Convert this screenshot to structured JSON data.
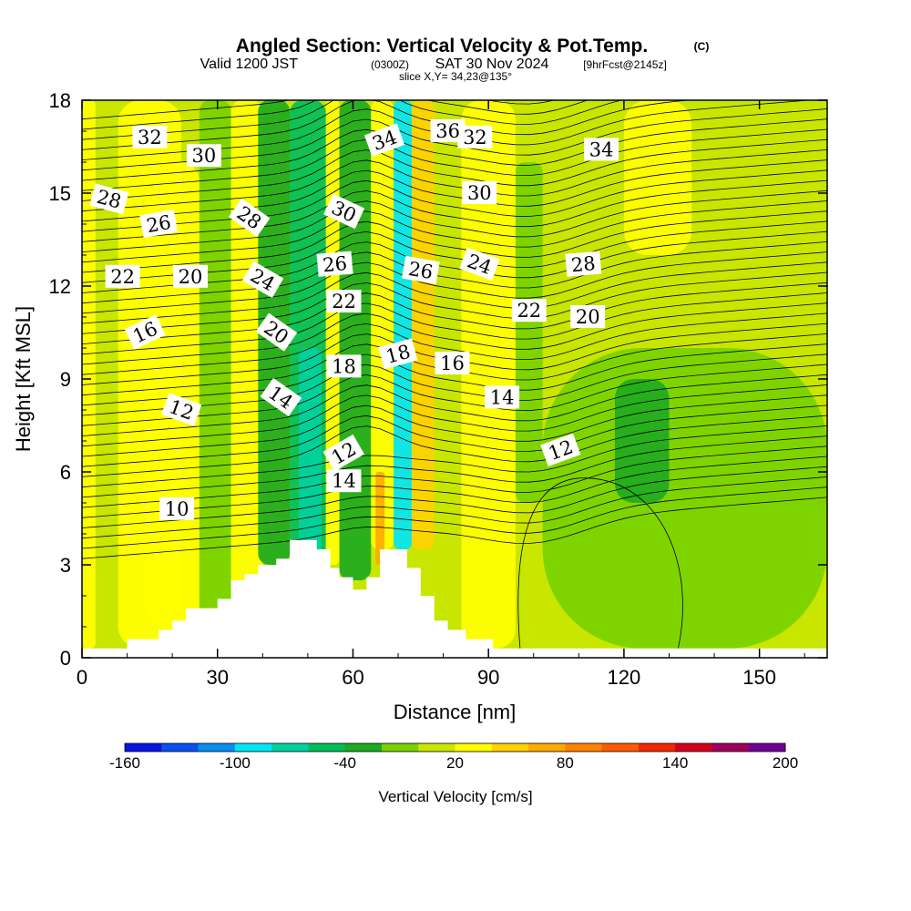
{
  "title": {
    "main": "Angled Section: Vertical Velocity & Pot.Temp.",
    "copyright": "(C)",
    "valid_prefix": "Valid 1200 JST",
    "valid_z": "(0300Z)",
    "valid_date": "SAT 30 Nov 2024",
    "valid_fcst": "[9hrFcst@2145z]",
    "slice": "slice X,Y= 34,23@135°"
  },
  "chart_data": {
    "type": "heatmap",
    "title": "Angled Section: Vertical Velocity & Pot.Temp.",
    "xlabel": "Distance [nm]",
    "ylabel": "Height [Kft MSL]",
    "xlim": [
      0,
      165
    ],
    "ylim": [
      0,
      18
    ],
    "x_ticks": [
      0,
      30,
      60,
      90,
      120,
      150
    ],
    "y_ticks": [
      0,
      3,
      6,
      9,
      12,
      15,
      18
    ],
    "x_tick_labels": [
      "0",
      "30",
      "60",
      "90",
      "120",
      "150"
    ],
    "y_tick_labels": [
      "0",
      "3",
      "6",
      "9",
      "12",
      "15",
      "18"
    ],
    "colorbar": {
      "title": "Vertical Velocity [cm/s]",
      "levels": [
        -160,
        -140,
        -120,
        -100,
        -80,
        -60,
        -40,
        -20,
        0,
        20,
        40,
        60,
        80,
        100,
        120,
        140,
        160,
        180,
        200
      ],
      "tick_labels": [
        "-160",
        "-100",
        "-40",
        "20",
        "80",
        "140",
        "200"
      ],
      "tick_values": [
        -160,
        -100,
        -40,
        20,
        80,
        140,
        200
      ],
      "colors": [
        "#0a14e6",
        "#0a50f0",
        "#0a8cf0",
        "#00e6f5",
        "#00d2a0",
        "#00be5a",
        "#1eaa1e",
        "#78d200",
        "#c8e600",
        "#ffff00",
        "#ffd200",
        "#ffaa00",
        "#ff8200",
        "#ff5a00",
        "#f02800",
        "#d2001e",
        "#a0005a",
        "#6e0096"
      ]
    },
    "terrain_profile": [
      [
        0,
        0.3
      ],
      [
        10,
        0.3
      ],
      [
        10,
        0.6
      ],
      [
        17,
        0.6
      ],
      [
        17,
        0.9
      ],
      [
        20,
        0.9
      ],
      [
        20,
        1.2
      ],
      [
        23,
        1.2
      ],
      [
        23,
        1.6
      ],
      [
        30,
        1.6
      ],
      [
        30,
        1.9
      ],
      [
        33,
        1.9
      ],
      [
        33,
        2.5
      ],
      [
        36,
        2.5
      ],
      [
        36,
        2.7
      ],
      [
        39,
        2.7
      ],
      [
        39,
        3.0
      ],
      [
        43,
        3.0
      ],
      [
        43,
        3.2
      ],
      [
        46,
        3.2
      ],
      [
        46,
        3.8
      ],
      [
        52,
        3.8
      ],
      [
        52,
        3.5
      ],
      [
        55,
        3.5
      ],
      [
        55,
        2.9
      ],
      [
        57,
        2.9
      ],
      [
        57,
        2.6
      ],
      [
        60,
        2.6
      ],
      [
        60,
        2.2
      ],
      [
        63,
        2.2
      ],
      [
        63,
        2.6
      ],
      [
        66,
        2.6
      ],
      [
        66,
        3.5
      ],
      [
        72,
        3.5
      ],
      [
        72,
        2.9
      ],
      [
        75,
        2.9
      ],
      [
        75,
        2.0
      ],
      [
        78,
        2.0
      ],
      [
        78,
        1.2
      ],
      [
        81,
        1.2
      ],
      [
        81,
        0.9
      ],
      [
        85,
        0.9
      ],
      [
        85,
        0.6
      ],
      [
        91,
        0.6
      ],
      [
        91,
        0.3
      ],
      [
        165,
        0.3
      ]
    ],
    "velocity_features": [
      {
        "x": [
          0,
          3
        ],
        "y": [
          0.3,
          18
        ],
        "value": 20
      },
      {
        "x": [
          8,
          22
        ],
        "y": [
          0.3,
          18
        ],
        "value": 20
      },
      {
        "x": [
          14,
          26
        ],
        "y": [
          1,
          16
        ],
        "value": 30
      },
      {
        "x": [
          26,
          33
        ],
        "y": [
          0.3,
          18
        ],
        "value": -20
      },
      {
        "x": [
          33,
          40
        ],
        "y": [
          0.3,
          18
        ],
        "value": 20
      },
      {
        "x": [
          39,
          46
        ],
        "y": [
          3,
          18
        ],
        "value": -40
      },
      {
        "x": [
          46,
          54
        ],
        "y": [
          3,
          18
        ],
        "value": -60
      },
      {
        "x": [
          48,
          53
        ],
        "y": [
          3,
          10
        ],
        "value": -80
      },
      {
        "x": [
          54,
          57
        ],
        "y": [
          3,
          18
        ],
        "value": 20
      },
      {
        "x": [
          57,
          64
        ],
        "y": [
          2.5,
          18
        ],
        "value": -40
      },
      {
        "x": [
          64,
          69
        ],
        "y": [
          3.5,
          18
        ],
        "value": 30
      },
      {
        "x": [
          65,
          67
        ],
        "y": [
          3,
          6
        ],
        "value": 60
      },
      {
        "x": [
          69,
          73
        ],
        "y": [
          3.5,
          18
        ],
        "value": -100
      },
      {
        "x": [
          73,
          78
        ],
        "y": [
          3.5,
          18
        ],
        "value": 40
      },
      {
        "x": [
          78,
          84
        ],
        "y": [
          1,
          18
        ],
        "value": 10
      },
      {
        "x": [
          84,
          96
        ],
        "y": [
          0.3,
          18
        ],
        "value": 20
      },
      {
        "x": [
          96,
          102
        ],
        "y": [
          5,
          16
        ],
        "value": -20
      },
      {
        "x": [
          102,
          165
        ],
        "y": [
          0.3,
          10
        ],
        "value": -20
      },
      {
        "x": [
          118,
          130
        ],
        "y": [
          5,
          9
        ],
        "value": -40
      },
      {
        "x": [
          120,
          135
        ],
        "y": [
          13,
          18
        ],
        "value": 30
      }
    ],
    "theta_contour_labels": [
      10,
      12,
      12,
      12,
      14,
      14,
      14,
      16,
      16,
      18,
      18,
      20,
      20,
      20,
      22,
      22,
      22,
      24,
      24,
      26,
      26,
      26,
      28,
      28,
      28,
      30,
      30,
      30,
      32,
      32,
      34,
      34,
      36
    ]
  }
}
